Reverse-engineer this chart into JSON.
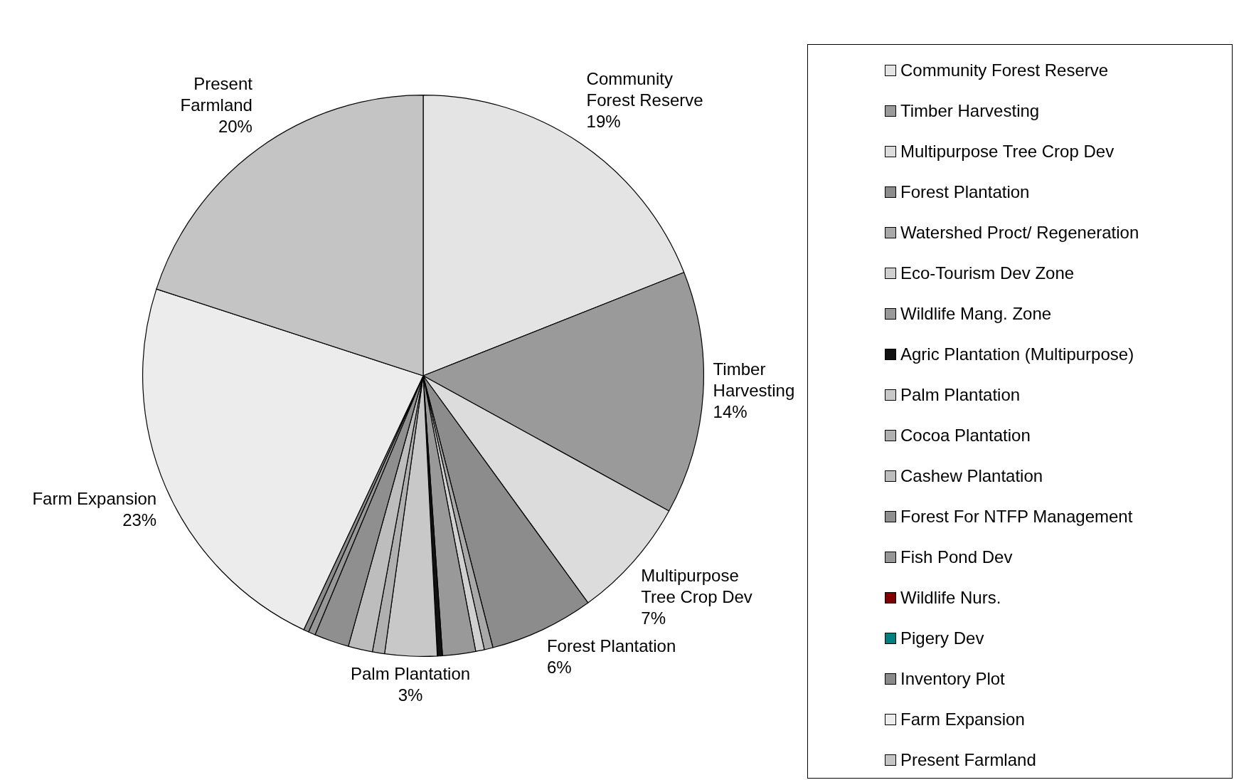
{
  "chart_data": {
    "type": "pie",
    "categories": [
      "Community Forest Reserve",
      "Timber Harvesting",
      "Multipurpose Tree Crop Dev",
      "Forest Plantation",
      "Watershed Proct/ Regeneration",
      "Eco-Tourism Dev Zone",
      "Wildlife Mang. Zone",
      "Agric Plantation (Multipurpose)",
      "Palm Plantation",
      "Cocoa Plantation",
      "Cashew Plantation",
      "Forest For NTFP Management",
      "Fish Pond Dev",
      "Wildlife Nurs.",
      "Pigery Dev",
      "Inventory Plot",
      "Farm Expansion",
      "Present Farmland"
    ],
    "values": [
      19,
      14,
      7,
      6,
      0.5,
      0.5,
      1.9,
      0.3,
      3,
      0.7,
      1.4,
      2,
      0.4,
      0,
      0,
      0.3,
      23,
      20
    ],
    "value_labels": [
      "19%",
      "14%",
      "7%",
      "6%",
      null,
      null,
      null,
      null,
      "3%",
      null,
      null,
      null,
      null,
      null,
      null,
      null,
      "23%",
      "20%"
    ],
    "colors": [
      "#e4e4e4",
      "#9a9a9a",
      "#dcdcdc",
      "#8c8c8c",
      "#a8a8a8",
      "#d0d0d0",
      "#999999",
      "#111111",
      "#c8c8c8",
      "#b0b0b0",
      "#bdbdbd",
      "#8f8f8f",
      "#979797",
      "#800000",
      "#008080",
      "#8a8a8a",
      "#ececec",
      "#c4c4c4"
    ],
    "legend": "right"
  }
}
